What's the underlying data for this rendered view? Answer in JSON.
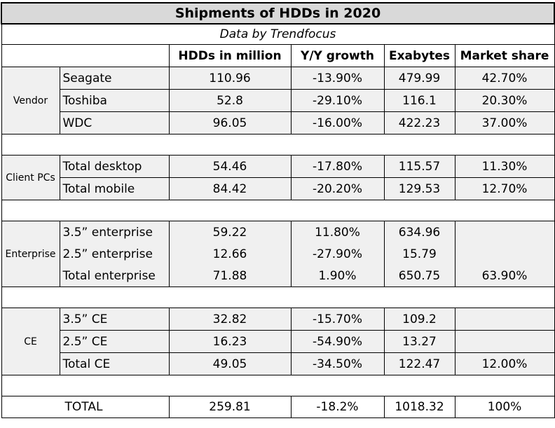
{
  "title": "Shipments of HDDs in 2020",
  "subtitle": "Data by Trendfocus",
  "headers": [
    "HDDs in million",
    "Y/Y growth",
    "Exabytes",
    "Market share"
  ],
  "groups": {
    "vendor": {
      "label": "Vendor",
      "rows": [
        {
          "name": "Seagate",
          "hdds": "110.96",
          "growth": "-13.90%",
          "exabytes": "479.99",
          "share": "42.70%"
        },
        {
          "name": "Toshiba",
          "hdds": "52.8",
          "growth": "-29.10%",
          "exabytes": "116.1",
          "share": "20.30%"
        },
        {
          "name": "WDC",
          "hdds": "96.05",
          "growth": "-16.00%",
          "exabytes": "422.23",
          "share": "37.00%"
        }
      ]
    },
    "client": {
      "label": "Client PCs",
      "rows": [
        {
          "name": "Total desktop",
          "hdds": "54.46",
          "growth": "-17.80%",
          "exabytes": "115.57",
          "share": "11.30%"
        },
        {
          "name": "Total mobile",
          "hdds": "84.42",
          "growth": "-20.20%",
          "exabytes": "129.53",
          "share": "12.70%"
        }
      ]
    },
    "enterprise": {
      "label": "Enterprise",
      "rows": [
        {
          "name": "3.5” enterprise",
          "hdds": "59.22",
          "growth": "11.80%",
          "exabytes": "634.96",
          "share": ""
        },
        {
          "name": "2.5” enterprise",
          "hdds": "12.66",
          "growth": "-27.90%",
          "exabytes": "15.79",
          "share": ""
        },
        {
          "name": "Total enterprise",
          "hdds": "71.88",
          "growth": "1.90%",
          "exabytes": "650.75",
          "share": "63.90%"
        }
      ]
    },
    "ce": {
      "label": "CE",
      "rows": [
        {
          "name": "3.5” CE",
          "hdds": "32.82",
          "growth": "-15.70%",
          "exabytes": "109.2",
          "share": ""
        },
        {
          "name": "2.5” CE",
          "hdds": "16.23",
          "growth": "-54.90%",
          "exabytes": "13.27",
          "share": ""
        },
        {
          "name": "Total CE",
          "hdds": "49.05",
          "growth": "-34.50%",
          "exabytes": "122.47",
          "share": "12.00%"
        }
      ]
    }
  },
  "total": {
    "name": "TOTAL",
    "hdds": "259.81",
    "growth": "-18.2%",
    "exabytes": "1018.32",
    "share": "100%"
  }
}
